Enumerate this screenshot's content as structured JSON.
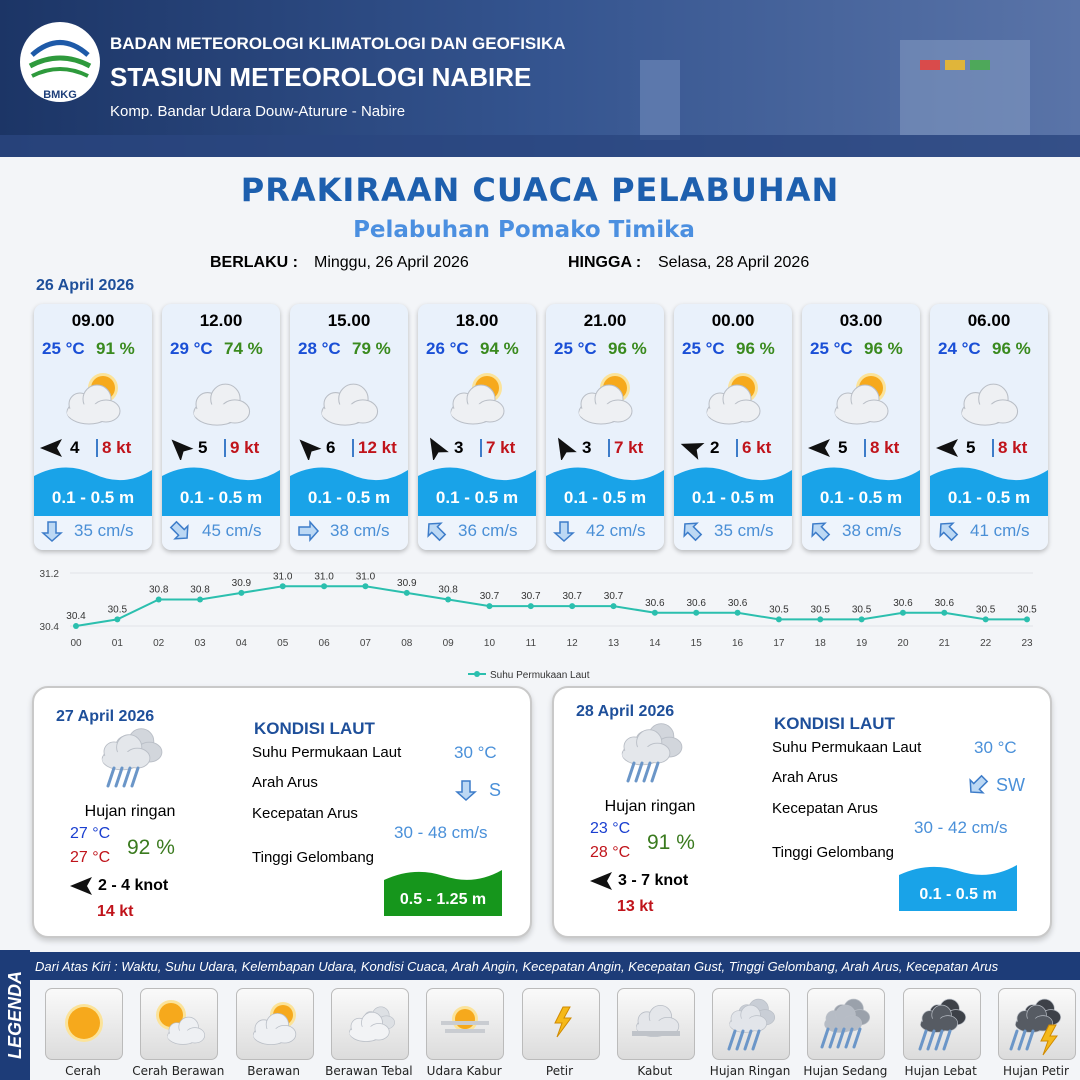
{
  "header": {
    "logo": "BMKG",
    "org": "BADAN METEOROLOGI KLIMATOLOGI DAN GEOFISIKA",
    "station": "STASIUN METEOROLOGI NABIRE",
    "address": "Komp. Bandar Udara Douw-Aturure - Nabire"
  },
  "title": "PRAKIRAAN CUACA PELABUHAN",
  "subtitle": "Pelabuhan Pomako Timika",
  "validity": {
    "from_label": "BERLAKU :",
    "from": "Minggu, 26 April 2026",
    "to_label": "HINGGA :",
    "to": "Selasa, 28 April 2026"
  },
  "day1": {
    "date": "26 April 2026",
    "forecasts": [
      {
        "time": "09.00",
        "temp": "25 °C",
        "humidity": "91 %",
        "wind_speed": "4",
        "gust": "8 kt",
        "wave": "0.1 - 0.5 m",
        "current": "35 cm/s"
      },
      {
        "time": "12.00",
        "temp": "29 °C",
        "humidity": "74 %",
        "wind_speed": "5",
        "gust": "9 kt",
        "wave": "0.1 - 0.5 m",
        "current": "45 cm/s"
      },
      {
        "time": "15.00",
        "temp": "28 °C",
        "humidity": "79 %",
        "wind_speed": "6",
        "gust": "12 kt",
        "wave": "0.1 - 0.5 m",
        "current": "38 cm/s"
      },
      {
        "time": "18.00",
        "temp": "26 °C",
        "humidity": "94 %",
        "wind_speed": "3",
        "gust": "7 kt",
        "wave": "0.1 - 0.5 m",
        "current": "36 cm/s"
      },
      {
        "time": "21.00",
        "temp": "25 °C",
        "humidity": "96 %",
        "wind_speed": "3",
        "gust": "7 kt",
        "wave": "0.1 - 0.5 m",
        "current": "42 cm/s"
      },
      {
        "time": "00.00",
        "temp": "25 °C",
        "humidity": "96 %",
        "wind_speed": "2",
        "gust": "6 kt",
        "wave": "0.1 - 0.5 m",
        "current": "35 cm/s"
      },
      {
        "time": "03.00",
        "temp": "25 °C",
        "humidity": "96 %",
        "wind_speed": "5",
        "gust": "8 kt",
        "wave": "0.1 - 0.5 m",
        "current": "38 cm/s"
      },
      {
        "time": "06.00",
        "temp": "24 °C",
        "humidity": "96 %",
        "wind_speed": "5",
        "gust": "8 kt",
        "wave": "0.1 - 0.5 m",
        "current": "41 cm/s"
      }
    ]
  },
  "chart_data": {
    "type": "line",
    "x": [
      "00",
      "01",
      "02",
      "03",
      "04",
      "05",
      "06",
      "07",
      "08",
      "09",
      "10",
      "11",
      "12",
      "13",
      "14",
      "15",
      "16",
      "17",
      "18",
      "19",
      "20",
      "21",
      "22",
      "23"
    ],
    "series": [
      {
        "name": "Suhu Permukaan Laut",
        "color": "#2bbfae",
        "values": [
          30.4,
          30.5,
          30.8,
          30.8,
          30.9,
          31.0,
          31.0,
          31.0,
          30.9,
          30.8,
          30.7,
          30.7,
          30.7,
          30.7,
          30.6,
          30.6,
          30.6,
          30.5,
          30.5,
          30.5,
          30.6,
          30.6,
          30.5,
          30.5
        ],
        "value_labels": [
          "30.4",
          "30.5",
          "30.8",
          "30.8",
          "30.9",
          "31.0",
          "31.0",
          "31.0",
          "30.9",
          "30.8",
          "30.7",
          "30.7",
          "30.7",
          "30.7",
          "30.6",
          "30.6",
          "30.6",
          "30.5",
          "30.5",
          "30.5",
          "30.6",
          "30.6",
          "30.5",
          "30.5"
        ]
      }
    ],
    "ylim": [
      30.4,
      31.2
    ],
    "yticks": [
      30.4,
      31.2
    ]
  },
  "outlook": [
    {
      "date": "27 April 2026",
      "condition": "Hujan ringan",
      "temp_min": "27 °C",
      "temp_max": "27 °C",
      "humidity": "92 %",
      "wind": "2 - 4 knot",
      "gust": "14 kt",
      "sea": {
        "heading": "KONDISI LAUT",
        "labels": [
          "Suhu Permukaan Laut",
          "Arah Arus",
          "Kecepatan Arus",
          "Tinggi Gelombang"
        ],
        "sst": "30 °C",
        "current_dir": "S",
        "current_speed": "30 - 48 cm/s",
        "wave": "0.5 - 1.25 m",
        "wave_color": "#16961c"
      }
    },
    {
      "date": "28 April 2026",
      "condition": "Hujan ringan",
      "temp_min": "23 °C",
      "temp_max": "28 °C",
      "humidity": "91 %",
      "wind": "3 - 7 knot",
      "gust": "13 kt",
      "sea": {
        "heading": "KONDISI LAUT",
        "labels": [
          "Suhu Permukaan Laut",
          "Arah Arus",
          "Kecepatan Arus",
          "Tinggi Gelombang"
        ],
        "sst": "30 °C",
        "current_dir": "SW",
        "current_speed": "30 - 42 cm/s",
        "wave": "0.1 - 0.5 m",
        "wave_color": "#19a3e8"
      }
    }
  ],
  "legend": {
    "title": "LEGENDA",
    "caption": "Dari Atas Kiri : Waktu, Suhu Udara, Kelembapan Udara, Kondisi Cuaca, Arah Angin, Kecepatan Angin, Kecepatan Gust, Tinggi Gelombang, Arah Arus, Kecepatan Arus",
    "items": [
      "Cerah",
      "Cerah Berawan",
      "Berawan",
      "Berawan Tebal",
      "Udara Kabur",
      "Petir",
      "Kabut",
      "Hujan Ringan",
      "Hujan Sedang",
      "Hujan Lebat",
      "Hujan Petir"
    ]
  }
}
